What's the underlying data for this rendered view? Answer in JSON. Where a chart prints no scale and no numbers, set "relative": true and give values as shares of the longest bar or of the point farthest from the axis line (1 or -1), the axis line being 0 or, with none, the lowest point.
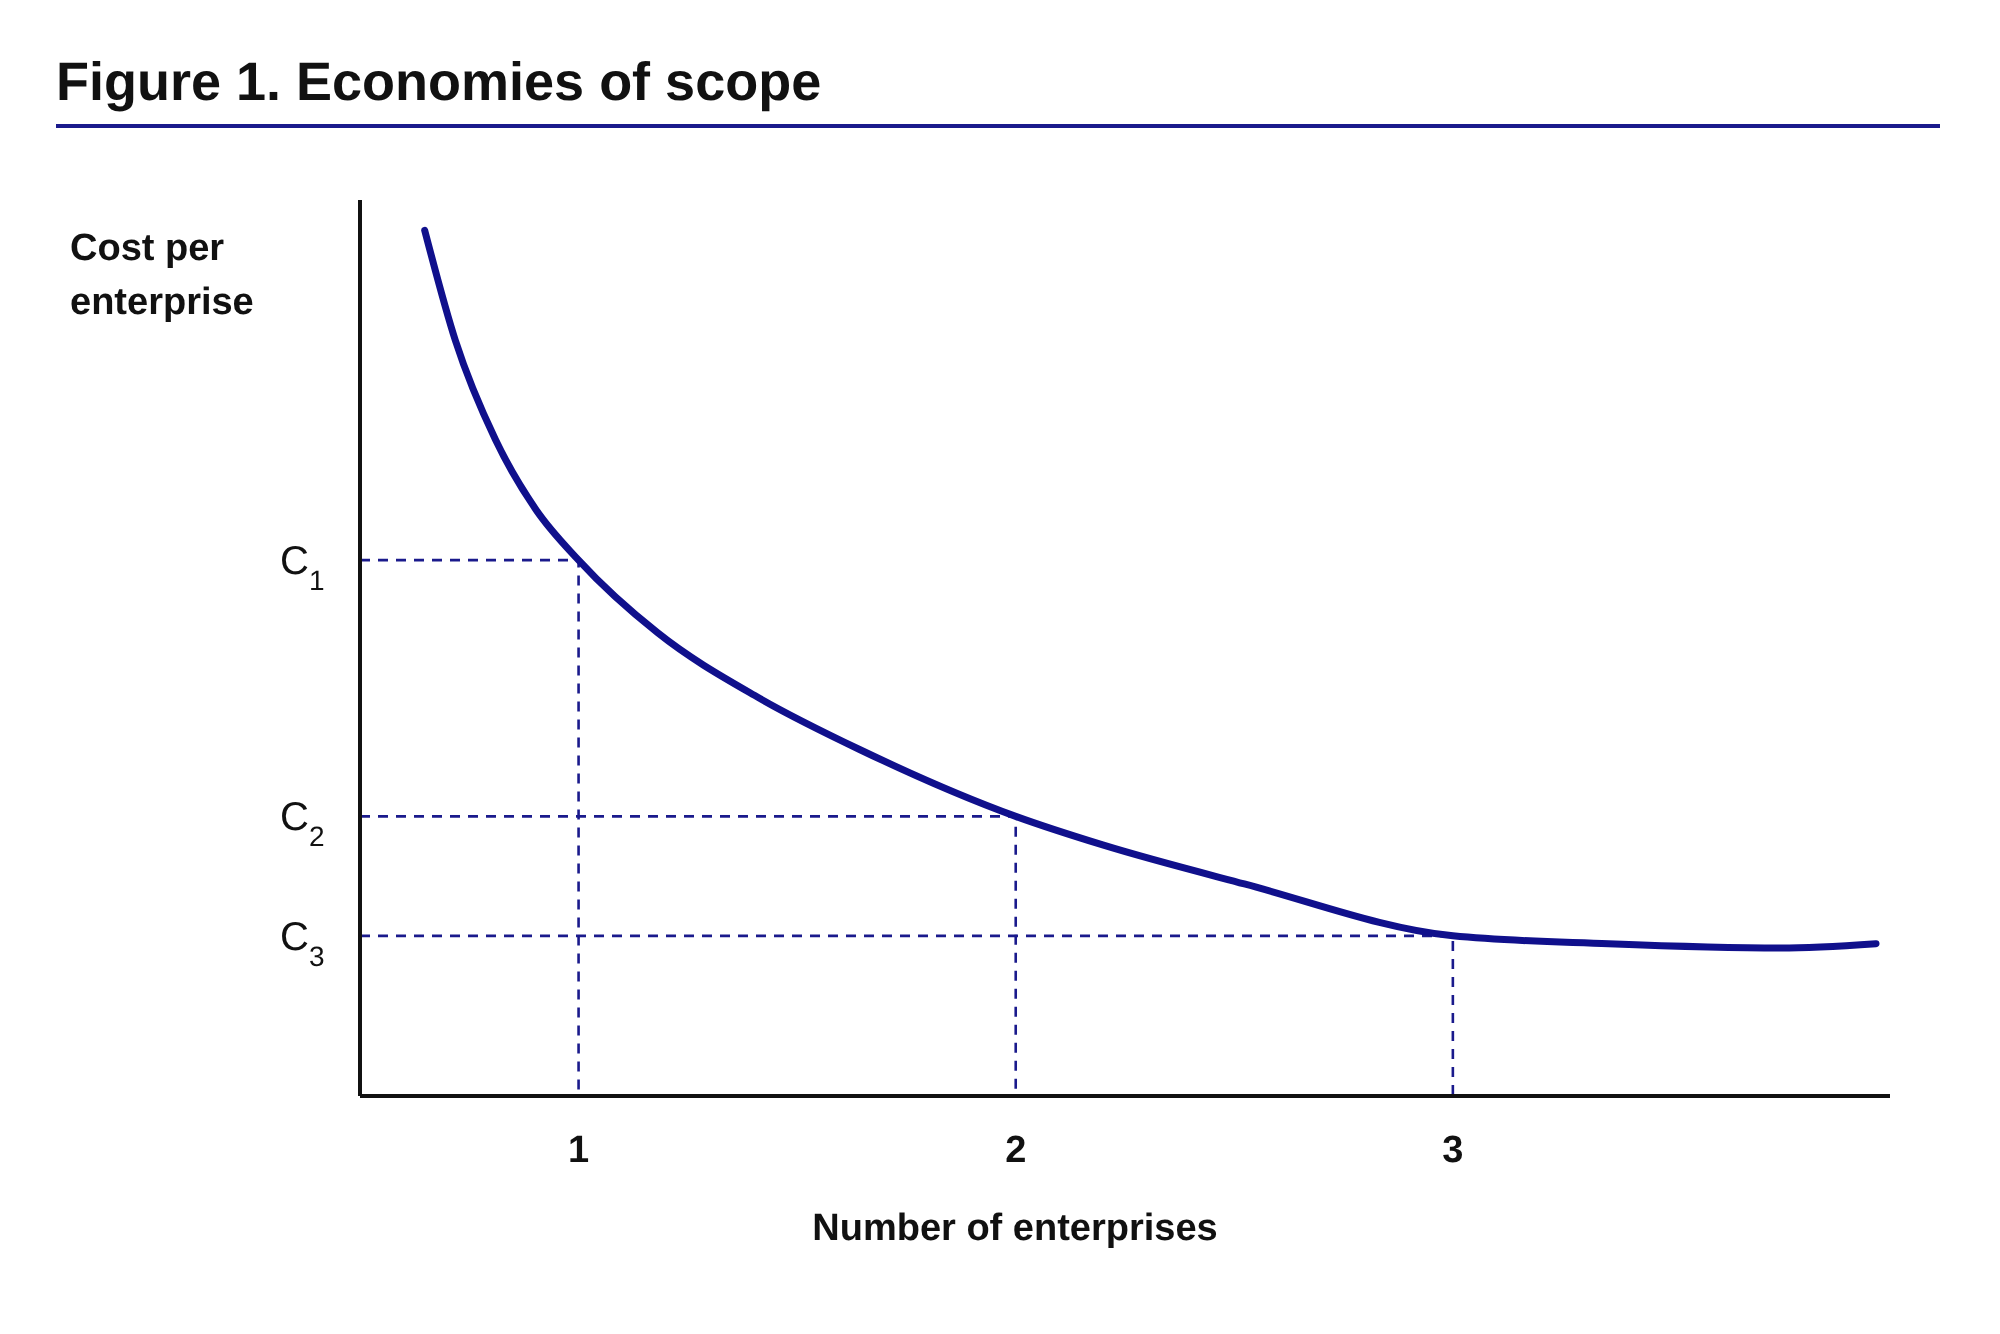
{
  "chart_data": {
    "type": "line",
    "title": "Figure 1. Economies of scope",
    "xlabel": "Number of enterprises",
    "ylabel": "Cost per enterprise",
    "relative": true,
    "xlim": [
      0.5,
      4.0
    ],
    "xticks": [
      1,
      2,
      3
    ],
    "series": [
      {
        "color": "#10108c",
        "x": [
          0.648,
          0.718,
          0.81,
          0.903,
          1.0,
          1.181,
          1.412,
          1.644,
          2.0,
          2.199,
          2.523,
          3.0,
          3.356,
          3.75,
          3.968
        ],
        "values": [
          1.0,
          0.873,
          0.758,
          0.677,
          0.619,
          0.535,
          0.46,
          0.4,
          0.323,
          0.29,
          0.245,
          0.185,
          0.176,
          0.171,
          0.176
        ]
      }
    ],
    "ref_lines": [
      {
        "axis": "y",
        "value": 0.619,
        "label": "C$_{1}$",
        "color": "#1a1a8c",
        "line_style": "dashed"
      },
      {
        "axis": "y",
        "value": 0.323,
        "label": "C$_{2}$",
        "color": "#1a1a8c",
        "line_style": "dashed"
      },
      {
        "axis": "y",
        "value": 0.185,
        "label": "C$_{3}$",
        "color": "#1a1a8c",
        "line_style": "dashed"
      }
    ]
  }
}
